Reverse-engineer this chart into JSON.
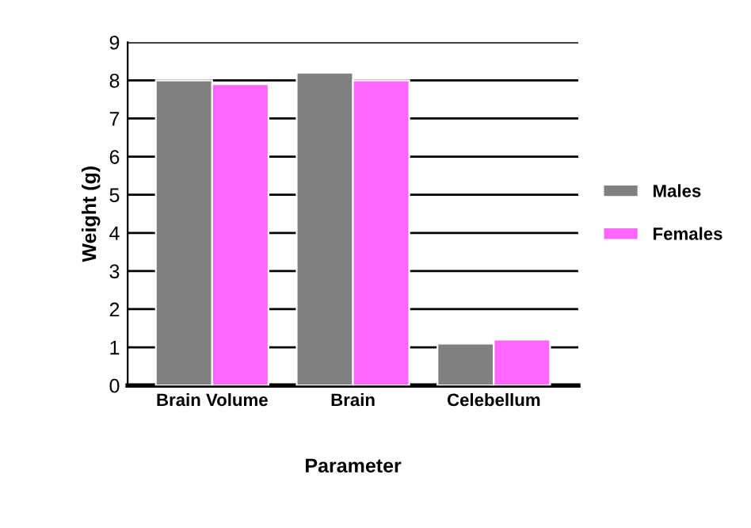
{
  "chart_data": {
    "type": "bar",
    "xlabel": "Parameter",
    "ylabel": "Weight (g)",
    "categories": [
      "Brain Volume",
      "Brain",
      "Celebellum"
    ],
    "series": [
      {
        "name": "Males",
        "color": "#808080",
        "values": [
          8.0,
          8.2,
          1.1
        ]
      },
      {
        "name": "Females",
        "color": "#ff66ff",
        "values": [
          7.9,
          8.0,
          1.2
        ]
      }
    ],
    "ylim": [
      0,
      9
    ],
    "yticks": [
      0,
      1,
      2,
      3,
      4,
      5,
      6,
      7,
      8,
      9
    ],
    "grid": "y",
    "legend": "right"
  }
}
